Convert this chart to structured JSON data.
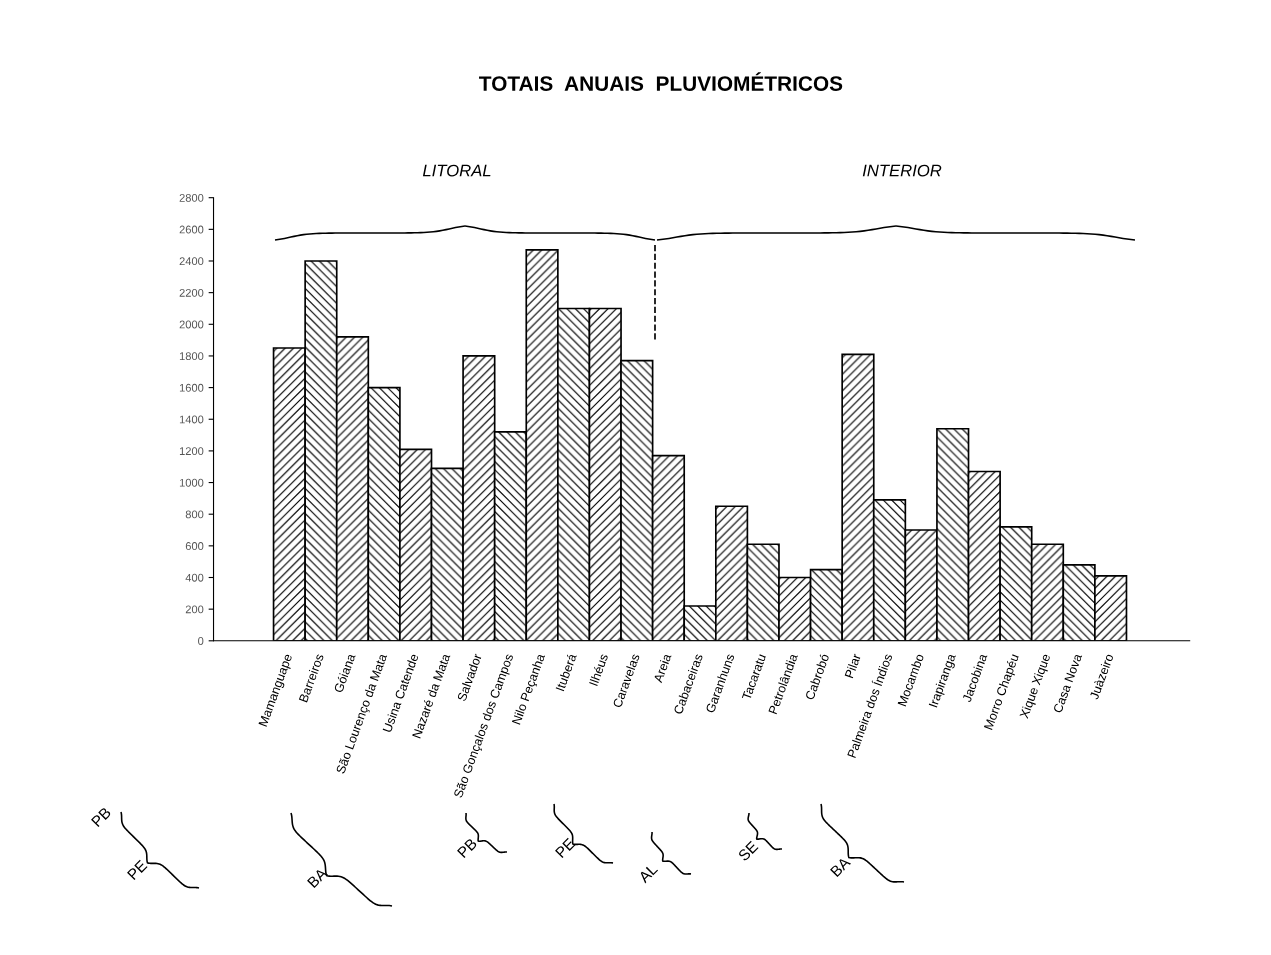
{
  "chart_data": {
    "type": "bar",
    "title": "TOTAIS  ANUAIS  PLUVIOMÉTRICOS",
    "categories": [
      "Mamanguape",
      "Barreiros",
      "Góiana",
      "São Lourenço da Mata",
      "Usina Catende",
      "Nazaré da Mata",
      "Salvador",
      "São Gonçalos dos Campos",
      "Nilo Peçanha",
      "Ituberá",
      "Ilhéus",
      "Caravelas",
      "Areia",
      "Cabaceiras",
      "Garanhuns",
      "Tacaratu",
      "Petrolândia",
      "Cabrobó",
      "Pilar",
      "Palmeira dos Índios",
      "Mocambo",
      "Irapiranga",
      "Jacobina",
      "Morro Chapéu",
      "Xique Xique",
      "Casa Nova",
      "Juàzeiro"
    ],
    "values": [
      1850,
      2400,
      1920,
      1600,
      1210,
      1090,
      1800,
      1320,
      2470,
      2100,
      2100,
      1770,
      1170,
      220,
      850,
      610,
      400,
      450,
      1810,
      890,
      700,
      1340,
      1070,
      720,
      610,
      480,
      410
    ],
    "color": "#000000",
    "ylim": [
      0,
      2800
    ],
    "yticks": [
      0,
      200,
      400,
      600,
      800,
      1000,
      1200,
      1400,
      1600,
      1800,
      2000,
      2200,
      2400,
      2600,
      2800
    ],
    "annotations": [
      "LITORAL",
      "INTERIOR",
      "PB",
      "PE",
      "BA",
      "PB",
      "PE",
      "AL",
      "SE",
      "BA"
    ],
    "grid": false,
    "legend": false
  }
}
